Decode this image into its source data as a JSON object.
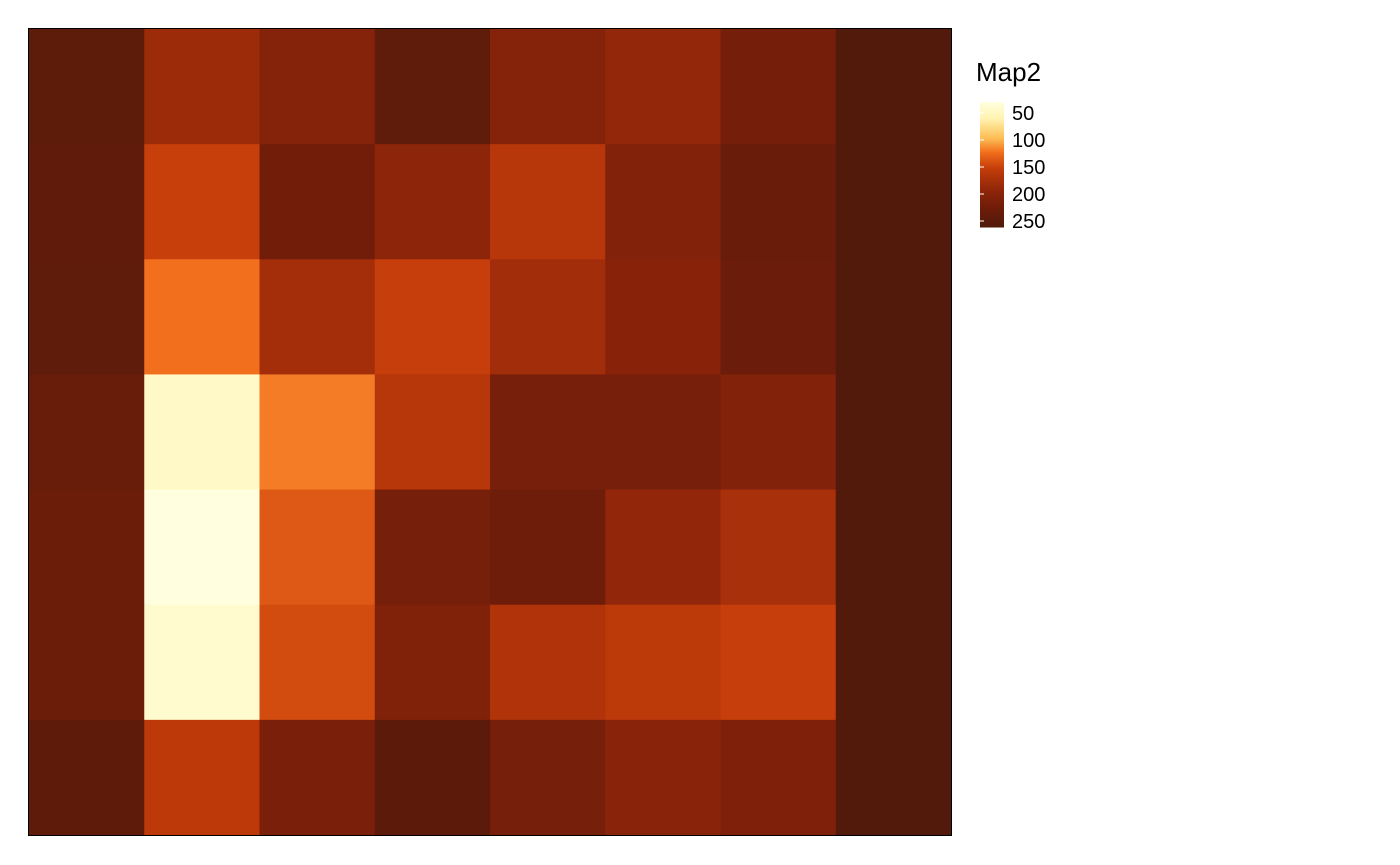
{
  "chart_data": {
    "type": "heatmap",
    "title": "",
    "xlabel": "",
    "ylabel": "",
    "n_cols": 8,
    "n_rows": 7,
    "values": [
      [
        236,
        175,
        195,
        232,
        194,
        182,
        210,
        248
      ],
      [
        233,
        143,
        214,
        186,
        154,
        197,
        222,
        248
      ],
      [
        232,
        115,
        169,
        144,
        171,
        191,
        221,
        248
      ],
      [
        224,
        40,
        111,
        155,
        208,
        208,
        196,
        248
      ],
      [
        219,
        25,
        128,
        209,
        218,
        183,
        166,
        248
      ],
      [
        220,
        36,
        136,
        199,
        160,
        151,
        144,
        248
      ],
      [
        234,
        150,
        205,
        237,
        209,
        190,
        200,
        248
      ]
    ],
    "color_scale": {
      "domain": [
        25,
        250
      ],
      "stops": [
        {
          "v": 25,
          "color": "#ffffe0"
        },
        {
          "v": 55,
          "color": "#fff3b0"
        },
        {
          "v": 90,
          "color": "#fdbe55"
        },
        {
          "v": 115,
          "color": "#f2701d"
        },
        {
          "v": 145,
          "color": "#c43c0a"
        },
        {
          "v": 185,
          "color": "#8e250a"
        },
        {
          "v": 215,
          "color": "#701d0a"
        },
        {
          "v": 250,
          "color": "#501a0a"
        }
      ]
    },
    "legend": {
      "title": "Map2",
      "ticks": [
        50,
        100,
        150,
        200,
        250
      ],
      "placement": "right"
    }
  }
}
